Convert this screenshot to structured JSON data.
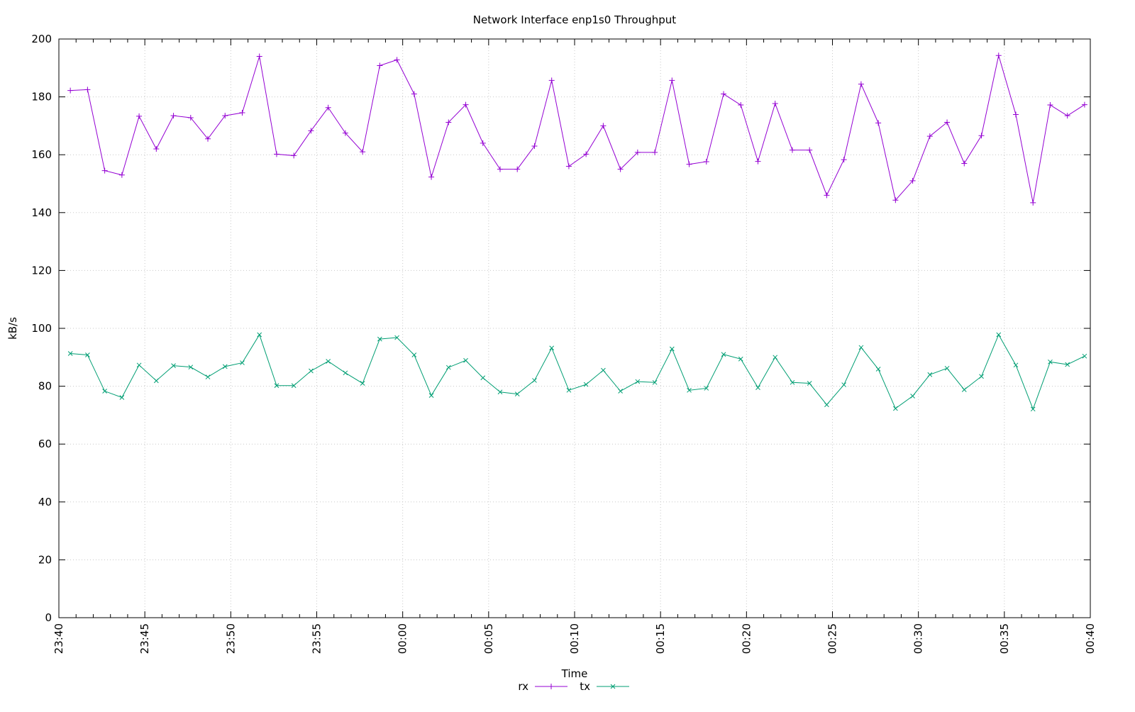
{
  "chart_data": {
    "type": "line",
    "title": "Network Interface enp1s0 Throughput",
    "xlabel": "Time",
    "ylabel": "kB/s",
    "ylim": [
      0,
      200
    ],
    "xlim": [
      "23:40",
      "00:40"
    ],
    "yticks": [
      0,
      20,
      40,
      60,
      80,
      100,
      120,
      140,
      160,
      180,
      200
    ],
    "xticks": [
      "23:40",
      "23:45",
      "23:50",
      "23:55",
      "00:00",
      "00:05",
      "00:10",
      "00:15",
      "00:20",
      "00:25",
      "00:30",
      "00:35",
      "00:40"
    ],
    "grid": true,
    "legend_position": "bottom-center",
    "x_start": "23:40:40",
    "x_interval": "1 minute",
    "series": [
      {
        "name": "rx",
        "color": "#9400d3",
        "marker": "plus",
        "values": [
          182.2,
          182.5,
          154.5,
          153,
          173.3,
          162,
          173.5,
          172.8,
          165.5,
          173.5,
          174.5,
          194,
          160.2,
          159.7,
          168.3,
          176.3,
          167.5,
          161,
          190.8,
          192.8,
          181,
          152.3,
          171.2,
          177.3,
          164,
          155,
          155,
          163,
          185.7,
          156,
          160.2,
          170,
          155,
          160.8,
          160.8,
          185.7,
          156.7,
          157.6,
          181,
          177.2,
          157.7,
          177.7,
          161.6,
          161.6,
          146,
          158.3,
          184.4,
          171,
          144.3,
          151,
          166.4,
          171.2,
          157,
          166.6,
          194.3,
          173.9,
          143.4,
          177.2,
          173.5,
          177.3
        ]
      },
      {
        "name": "tx",
        "color": "#009e73",
        "marker": "cross",
        "values": [
          91.3,
          90.8,
          78.3,
          76.1,
          87.3,
          81.9,
          87.1,
          86.6,
          83.2,
          86.8,
          88.1,
          97.8,
          80.2,
          80.2,
          85.3,
          88.6,
          84.6,
          81,
          96.3,
          96.8,
          90.8,
          76.8,
          86.5,
          88.9,
          82.9,
          78,
          77.3,
          82,
          93.2,
          78.6,
          80.6,
          85.5,
          78.3,
          81.6,
          81.3,
          92.9,
          78.6,
          79.3,
          91,
          89.4,
          79.5,
          90,
          81.3,
          81,
          73.6,
          80.5,
          93.4,
          85.9,
          72.3,
          76.6,
          84,
          86.2,
          78.8,
          83.4,
          97.8,
          87.3,
          72.1,
          88.4,
          87.5,
          90.4
        ]
      }
    ]
  }
}
